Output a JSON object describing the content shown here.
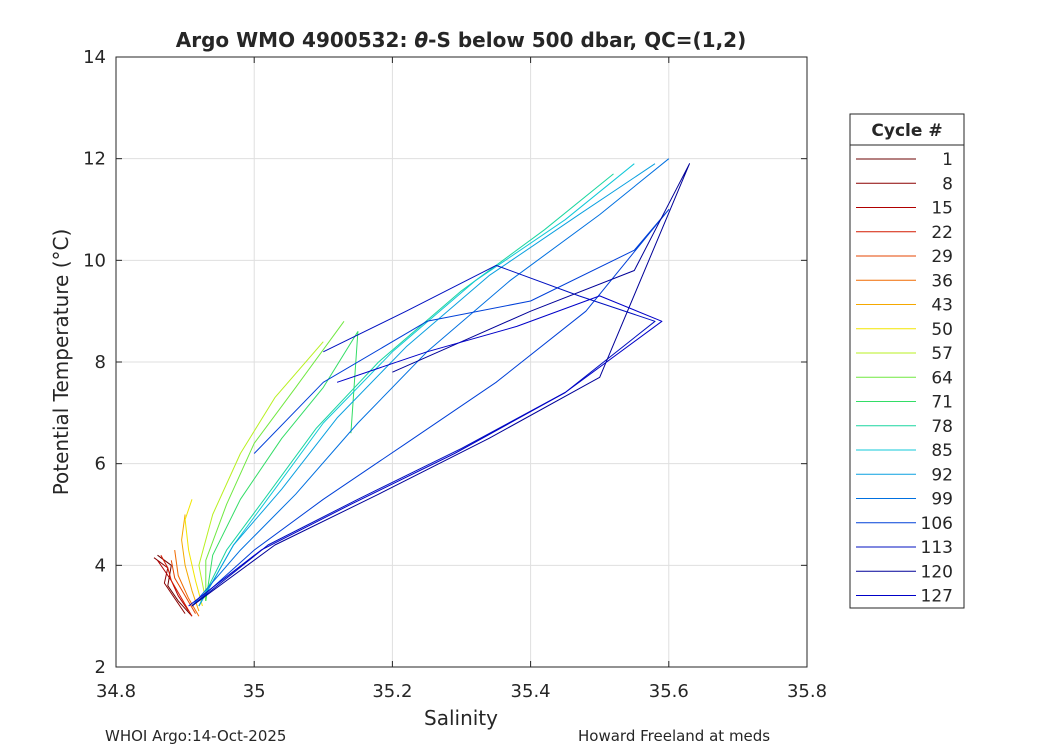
{
  "chart_data": {
    "type": "line",
    "title_prefix": "Argo WMO 4900532: ",
    "title_theta": "θ",
    "title_suffix": "-S below 500 dbar,  QC=(1,2)",
    "xlabel": "Salinity",
    "ylabel": "Potential Temperature (°C)",
    "xlim": [
      34.8,
      35.8
    ],
    "ylim": [
      2,
      14
    ],
    "xticks": [
      "34.8",
      "35",
      "35.2",
      "35.4",
      "35.6",
      "35.8"
    ],
    "yticks": [
      "2",
      "4",
      "6",
      "8",
      "10",
      "12",
      "14"
    ],
    "grid": true,
    "legend": {
      "title": "Cycle #",
      "placement": "right",
      "entries": [
        {
          "label": "1",
          "color": "#6b0000"
        },
        {
          "label": "8",
          "color": "#8c0000"
        },
        {
          "label": "15",
          "color": "#b00000"
        },
        {
          "label": "22",
          "color": "#d41a00"
        },
        {
          "label": "29",
          "color": "#e54400"
        },
        {
          "label": "36",
          "color": "#f06a00"
        },
        {
          "label": "43",
          "color": "#f5a800"
        },
        {
          "label": "50",
          "color": "#f2e600"
        },
        {
          "label": "57",
          "color": "#b8f020"
        },
        {
          "label": "64",
          "color": "#70e840"
        },
        {
          "label": "71",
          "color": "#33dd66"
        },
        {
          "label": "78",
          "color": "#1ad6a0"
        },
        {
          "label": "85",
          "color": "#10c8d8"
        },
        {
          "label": "92",
          "color": "#0aa0e0"
        },
        {
          "label": "99",
          "color": "#0070e0"
        },
        {
          "label": "106",
          "color": "#0040d8"
        },
        {
          "label": "113",
          "color": "#0010c0"
        },
        {
          "label": "120",
          "color": "#000098"
        },
        {
          "label": "127",
          "color": "#0000c8"
        }
      ]
    },
    "series": [
      {
        "cycle": 1,
        "color": "#6b0000",
        "x": [
          34.91,
          34.89,
          34.875,
          34.88,
          34.86
        ],
        "y": [
          3.0,
          3.3,
          3.6,
          4.0,
          4.2
        ]
      },
      {
        "cycle": 8,
        "color": "#8c0000",
        "x": [
          34.9,
          34.885,
          34.87,
          34.875,
          34.855
        ],
        "y": [
          3.05,
          3.35,
          3.65,
          3.95,
          4.15
        ]
      },
      {
        "cycle": 15,
        "color": "#b00000",
        "x": [
          34.905,
          34.89,
          34.88,
          34.87,
          34.86
        ],
        "y": [
          3.1,
          3.4,
          3.7,
          3.9,
          4.1
        ]
      },
      {
        "cycle": 22,
        "color": "#d41a00",
        "x": [
          34.91,
          34.895,
          34.88,
          34.875,
          34.865
        ],
        "y": [
          3.0,
          3.35,
          3.7,
          3.95,
          4.2
        ]
      },
      {
        "cycle": 29,
        "color": "#e54400",
        "x": [
          34.915,
          34.9,
          34.885,
          34.88
        ],
        "y": [
          3.05,
          3.4,
          3.75,
          4.1
        ]
      },
      {
        "cycle": 36,
        "color": "#f06a00",
        "x": [
          34.92,
          34.905,
          34.89,
          34.885
        ],
        "y": [
          3.0,
          3.35,
          3.8,
          4.3
        ]
      },
      {
        "cycle": 43,
        "color": "#f5a800",
        "x": [
          34.92,
          34.91,
          34.9,
          34.895,
          34.9
        ],
        "y": [
          3.1,
          3.5,
          4.0,
          4.5,
          5.0
        ]
      },
      {
        "cycle": 50,
        "color": "#f2e600",
        "x": [
          34.925,
          34.915,
          34.905,
          34.9,
          34.91
        ],
        "y": [
          3.2,
          3.7,
          4.3,
          4.9,
          5.3
        ]
      },
      {
        "cycle": 57,
        "color": "#b8f020",
        "x": [
          34.93,
          34.92,
          34.94,
          34.98,
          35.03,
          35.1
        ],
        "y": [
          3.3,
          4.0,
          5.0,
          6.2,
          7.3,
          8.4
        ]
      },
      {
        "cycle": 64,
        "color": "#70e840",
        "x": [
          34.93,
          34.93,
          34.96,
          35.0,
          35.06,
          35.13
        ],
        "y": [
          3.3,
          4.1,
          5.2,
          6.4,
          7.5,
          8.8
        ]
      },
      {
        "cycle": 71,
        "color": "#33dd66",
        "x": [
          34.93,
          34.94,
          34.98,
          35.04,
          35.1,
          35.15,
          35.14
        ],
        "y": [
          3.3,
          4.2,
          5.3,
          6.5,
          7.5,
          8.6,
          6.6
        ]
      },
      {
        "cycle": 78,
        "color": "#1ad6a0",
        "x": [
          34.92,
          34.96,
          35.02,
          35.09,
          35.18,
          35.3,
          35.42,
          35.52
        ],
        "y": [
          3.2,
          4.3,
          5.4,
          6.7,
          8.0,
          9.4,
          10.6,
          11.7
        ]
      },
      {
        "cycle": 85,
        "color": "#10c8d8",
        "x": [
          34.92,
          34.97,
          35.03,
          35.1,
          35.2,
          35.32,
          35.45,
          35.55
        ],
        "y": [
          3.2,
          4.4,
          5.5,
          6.8,
          8.2,
          9.6,
          10.8,
          11.9
        ]
      },
      {
        "cycle": 92,
        "color": "#0aa0e0",
        "x": [
          34.92,
          34.97,
          35.04,
          35.12,
          35.22,
          35.34,
          35.47,
          35.58
        ],
        "y": [
          3.2,
          4.4,
          5.5,
          6.9,
          8.3,
          9.7,
          10.9,
          11.9
        ]
      },
      {
        "cycle": 99,
        "color": "#0070e0",
        "x": [
          34.91,
          34.98,
          35.06,
          35.15,
          35.25,
          35.37,
          35.5,
          35.6
        ],
        "y": [
          3.2,
          4.3,
          5.4,
          6.8,
          8.2,
          9.6,
          10.9,
          12.0
        ]
      },
      {
        "cycle": 106,
        "color": "#0040d8",
        "x": [
          34.91,
          35.0,
          35.1,
          35.22,
          35.35,
          35.48,
          35.6,
          35.55,
          35.4,
          35.25,
          35.1,
          35.0
        ],
        "y": [
          3.2,
          4.3,
          5.3,
          6.4,
          7.6,
          9.0,
          11.0,
          10.2,
          9.2,
          8.8,
          7.6,
          6.2
        ]
      },
      {
        "cycle": 113,
        "color": "#0010c0",
        "x": [
          34.91,
          35.02,
          35.15,
          35.3,
          35.45,
          35.58,
          35.47,
          35.35,
          35.22,
          35.1
        ],
        "y": [
          3.2,
          4.4,
          5.3,
          6.3,
          7.4,
          8.8,
          9.3,
          9.9,
          9.0,
          8.2
        ]
      },
      {
        "cycle": 120,
        "color": "#000098",
        "x": [
          34.91,
          35.03,
          35.18,
          35.34,
          35.5,
          35.63,
          35.55,
          35.4,
          35.3,
          35.2
        ],
        "y": [
          3.2,
          4.4,
          5.4,
          6.5,
          7.7,
          11.9,
          9.8,
          9.0,
          8.4,
          7.8
        ]
      },
      {
        "cycle": 127,
        "color": "#0000c8",
        "x": [
          34.905,
          35.01,
          35.14,
          35.29,
          35.45,
          35.59,
          35.5,
          35.38,
          35.25,
          35.12
        ],
        "y": [
          3.2,
          4.3,
          5.2,
          6.2,
          7.4,
          8.8,
          9.3,
          8.7,
          8.2,
          7.6
        ]
      }
    ]
  },
  "footer": {
    "left": "WHOI Argo:14-Oct-2025",
    "right": "Howard Freeland at meds"
  }
}
